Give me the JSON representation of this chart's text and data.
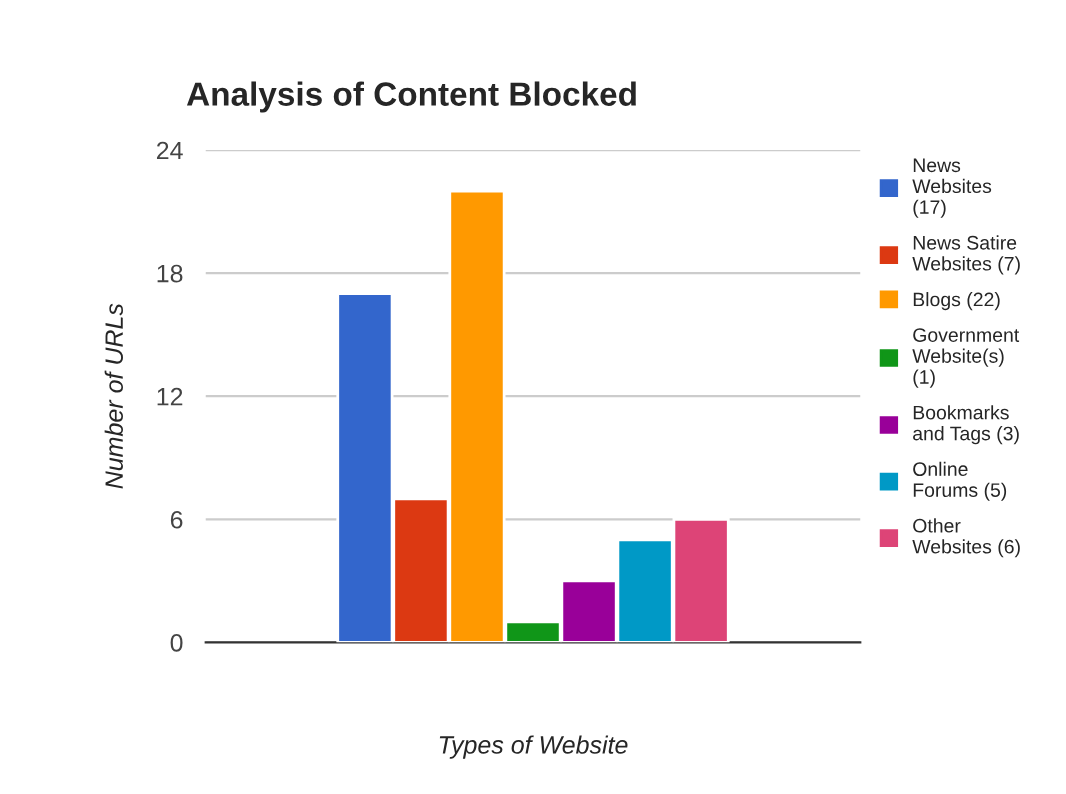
{
  "chart_data": {
    "type": "bar",
    "title": "Analysis of Content Blocked",
    "xlabel": "Types of Website",
    "ylabel": "Number of URLs",
    "categories": [
      null
    ],
    "series": [
      {
        "name": "News Websites (17)",
        "color": "#3366cc",
        "values": [
          17
        ]
      },
      {
        "name": "News Satire Websites (7)",
        "color": "#dc3912",
        "values": [
          7
        ]
      },
      {
        "name": "Blogs (22)",
        "color": "#ff9900",
        "values": [
          22
        ]
      },
      {
        "name": "Government Website(s) (1)",
        "color": "#109618",
        "values": [
          1
        ]
      },
      {
        "name": "Bookmarks and Tags (3)",
        "color": "#990099",
        "values": [
          3
        ]
      },
      {
        "name": "Online Forums (5)",
        "color": "#0099c6",
        "values": [
          5
        ]
      },
      {
        "name": "Other Websites (6)",
        "color": "#dd4477",
        "values": [
          6
        ]
      }
    ],
    "ylim": [
      0,
      24
    ],
    "yticks": [
      0,
      6,
      12,
      18,
      24
    ],
    "grid": "y",
    "legend": "right"
  }
}
